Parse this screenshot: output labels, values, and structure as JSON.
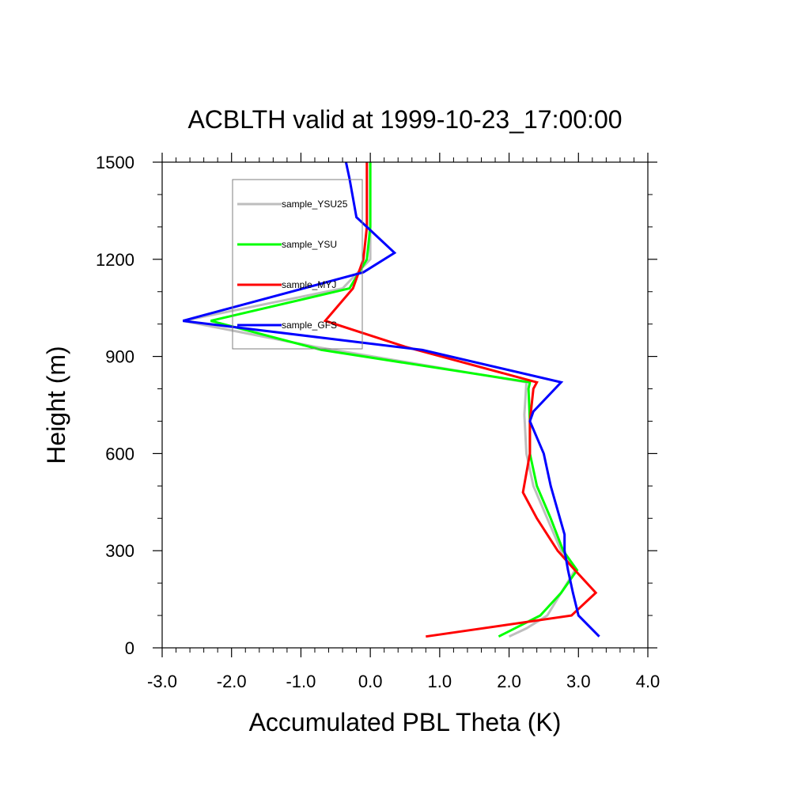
{
  "chart_data": {
    "type": "line",
    "title": "ACBLTH valid at 1999-10-23_17:00:00",
    "xlabel": "Accumulated PBL Theta (K)",
    "ylabel": "Height (m)",
    "xlim": [
      -3.0,
      4.0
    ],
    "ylim": [
      0,
      1500
    ],
    "xticks": [
      "-3.0",
      "-2.0",
      "-1.0",
      "0.0",
      "1.0",
      "2.0",
      "3.0",
      "4.0"
    ],
    "yticks": [
      "0",
      "300",
      "600",
      "900",
      "1200",
      "1500"
    ],
    "grid": false,
    "legend_position": "top-left",
    "series": [
      {
        "name": "sample_YSU25",
        "color": "#bebebe",
        "x": [
          2.0,
          2.25,
          2.55,
          2.75,
          2.95,
          2.75,
          2.55,
          2.35,
          2.25,
          2.22,
          2.25,
          -0.8,
          -2.7,
          -0.4,
          0.0,
          0.0,
          0.0,
          0.0
        ],
        "y": [
          35,
          60,
          100,
          170,
          240,
          300,
          400,
          500,
          600,
          720,
          820,
          930,
          1010,
          1110,
          1200,
          1300,
          1400,
          1500
        ]
      },
      {
        "name": "sample_YSU",
        "color": "#00ff00",
        "x": [
          1.85,
          2.45,
          2.75,
          2.98,
          2.78,
          2.6,
          2.4,
          2.3,
          2.3,
          2.28,
          2.3,
          -0.7,
          -2.3,
          -0.3,
          -0.05,
          0.0,
          0.0,
          0.0
        ],
        "y": [
          35,
          100,
          170,
          240,
          300,
          400,
          500,
          600,
          700,
          800,
          820,
          920,
          1010,
          1110,
          1200,
          1300,
          1400,
          1500
        ]
      },
      {
        "name": "sample_MYJ",
        "color": "#ff0000",
        "x": [
          0.8,
          2.9,
          3.25,
          2.95,
          2.7,
          2.4,
          2.2,
          2.3,
          2.3,
          2.35,
          2.4,
          0.5,
          -0.65,
          -0.25,
          -0.1,
          -0.05,
          -0.05,
          -0.05
        ],
        "y": [
          35,
          100,
          170,
          240,
          300,
          400,
          480,
          600,
          700,
          800,
          820,
          930,
          1010,
          1110,
          1200,
          1300,
          1400,
          1500
        ]
      },
      {
        "name": "sample_GFS",
        "color": "#0000ff",
        "x": [
          3.3,
          3.0,
          2.92,
          2.85,
          2.8,
          2.8,
          2.6,
          2.5,
          2.3,
          2.35,
          2.75,
          0.75,
          -2.7,
          -0.1,
          0.35,
          -0.05,
          -0.2,
          -0.3,
          -0.35
        ],
        "y": [
          35,
          100,
          170,
          240,
          300,
          350,
          500,
          600,
          700,
          730,
          820,
          920,
          1010,
          1160,
          1220,
          1300,
          1330,
          1450,
          1500
        ]
      }
    ]
  }
}
